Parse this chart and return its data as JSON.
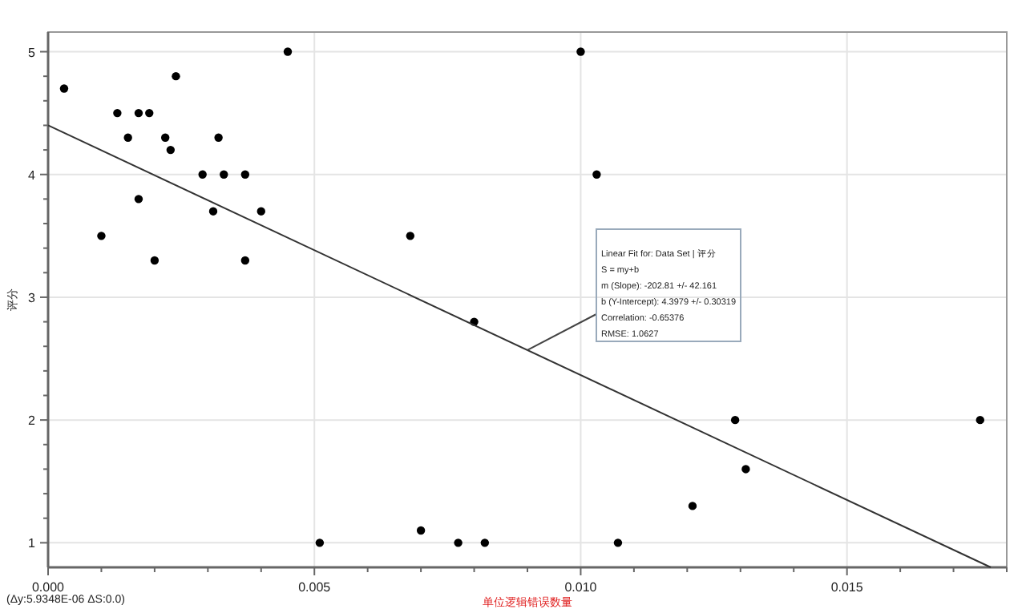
{
  "chart_data": {
    "type": "scatter",
    "xlabel": "单位逻辑错误数量",
    "ylabel": "评分",
    "xlim": [
      0,
      0.018
    ],
    "ylim": [
      0.8,
      5.16
    ],
    "xticks": [
      {
        "value": 0,
        "label": "0.000"
      },
      {
        "value": 0.001,
        "label": null
      },
      {
        "value": 0.002,
        "label": null
      },
      {
        "value": 0.003,
        "label": null
      },
      {
        "value": 0.004,
        "label": null
      },
      {
        "value": 0.005,
        "label": "0.005"
      },
      {
        "value": 0.006,
        "label": null
      },
      {
        "value": 0.007,
        "label": null
      },
      {
        "value": 0.008,
        "label": null
      },
      {
        "value": 0.009,
        "label": null
      },
      {
        "value": 0.01,
        "label": "0.010"
      },
      {
        "value": 0.011,
        "label": null
      },
      {
        "value": 0.012,
        "label": null
      },
      {
        "value": 0.013,
        "label": null
      },
      {
        "value": 0.014,
        "label": null
      },
      {
        "value": 0.015,
        "label": "0.015"
      },
      {
        "value": 0.016,
        "label": null
      },
      {
        "value": 0.017,
        "label": null
      },
      {
        "value": 0.018,
        "label": null
      }
    ],
    "yticks": [
      1,
      {
        "value": 1.2,
        "label": null
      },
      {
        "value": 1.4,
        "label": null
      },
      {
        "value": 1.6,
        "label": null
      },
      {
        "value": 1.8,
        "label": null
      },
      2,
      {
        "value": 2.2,
        "label": null
      },
      {
        "value": 2.4,
        "label": null
      },
      {
        "value": 2.6,
        "label": null
      },
      {
        "value": 2.8,
        "label": null
      },
      3,
      {
        "value": 3.2,
        "label": null
      },
      {
        "value": 3.4,
        "label": null
      },
      {
        "value": 3.6,
        "label": null
      },
      {
        "value": 3.8,
        "label": null
      },
      4,
      {
        "value": 4.2,
        "label": null
      },
      {
        "value": 4.4,
        "label": null
      },
      {
        "value": 4.6,
        "label": null
      },
      {
        "value": 4.8,
        "label": null
      },
      5
    ],
    "grid": true,
    "marker": "circle",
    "series": [
      {
        "color": "#000000",
        "x": [
          0.0003,
          0.001,
          0.0013,
          0.0015,
          0.0017,
          0.0017,
          0.0019,
          0.002,
          0.0022,
          0.0023,
          0.0024,
          0.0029,
          0.0031,
          0.0032,
          0.0033,
          0.0037,
          0.0037,
          0.004,
          0.0045,
          0.0068,
          0.008,
          0.0051,
          0.007,
          0.0077,
          0.0082,
          0.01,
          0.0103,
          0.0107,
          0.0121,
          0.0129,
          0.0131,
          0.0175
        ],
        "values": [
          4.7,
          3.5,
          4.5,
          4.3,
          3.8,
          4.5,
          4.5,
          3.3,
          4.3,
          4.2,
          4.8,
          4.0,
          3.7,
          4.3,
          4.0,
          3.3,
          4.0,
          3.7,
          5.0,
          3.5,
          2.8,
          1.0,
          1.1,
          1.0,
          1.0,
          5.0,
          4.0,
          1.0,
          1.3,
          2.0,
          1.6,
          2.0
        ]
      },
      {
        "type": "line",
        "color": "#333333",
        "marker": "none",
        "x": [
          0,
          0.0177
        ],
        "values": [
          4.4,
          0.8
        ]
      }
    ],
    "annotations": [
      {
        "text": "Linear Fit for: Data Set | 评分\nS = my+b\nm (Slope): -202.81 +/- 42.161\nb (Y-Intercept): 4.3979 +/- 0.30319\nCorrelation: -0.65376\nRMSE: 1.0627",
        "x": 0.009,
        "y": 2.57
      },
      "(Δy:5.9348E-06 ΔS:0.0)"
    ]
  }
}
